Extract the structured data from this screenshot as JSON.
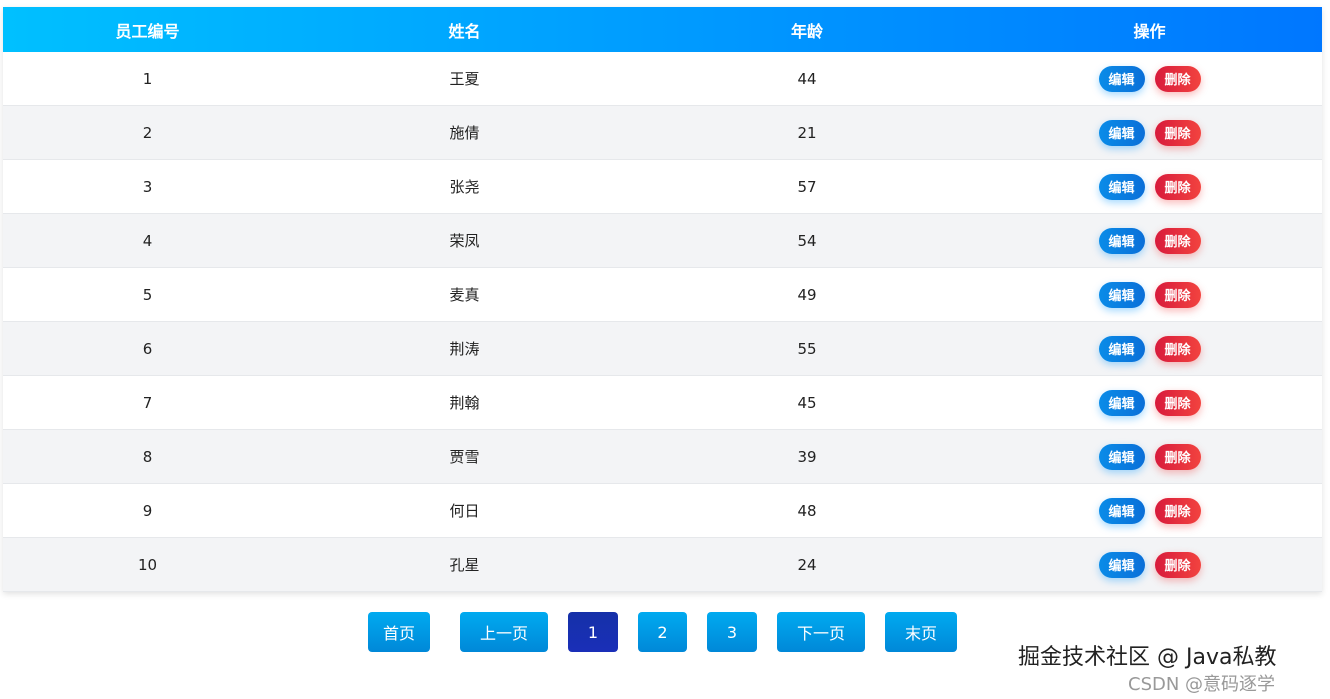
{
  "table": {
    "headers": [
      "员工编号",
      "姓名",
      "年龄",
      "操作"
    ],
    "edit_label": "编辑",
    "delete_label": "删除",
    "rows": [
      [
        "1",
        "王夏",
        "44"
      ],
      [
        "2",
        "施倩",
        "21"
      ],
      [
        "3",
        "张尧",
        "57"
      ],
      [
        "4",
        "荣凤",
        "54"
      ],
      [
        "5",
        "麦真",
        "49"
      ],
      [
        "6",
        "荆涛",
        "55"
      ],
      [
        "7",
        "荆翰",
        "45"
      ],
      [
        "8",
        "贾雪",
        "39"
      ],
      [
        "9",
        "何日",
        "48"
      ],
      [
        "10",
        "孔星",
        "24"
      ]
    ]
  },
  "pagination": {
    "first": "首页",
    "prev": "上一页",
    "pages": [
      "1",
      "2",
      "3"
    ],
    "current": "1",
    "next": "下一页",
    "last": "末页"
  },
  "watermark": {
    "primary": "掘金技术社区 @ Java私教",
    "secondary": "CSDN @意码逐学"
  },
  "colors": {
    "header_start": "#00c0ff",
    "header_end": "#0077ff",
    "edit": "#0a7fe0",
    "delete": "#e02a3e",
    "page_active": "#1a2fb0"
  }
}
